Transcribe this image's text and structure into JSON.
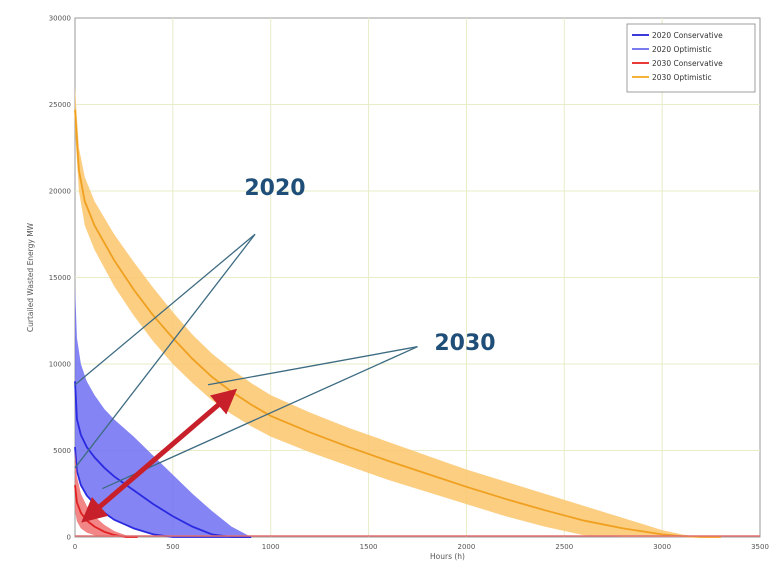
{
  "chart_data": {
    "type": "area",
    "title": "",
    "xlabel": "Hours (h)",
    "ylabel": "Curtailed Wasted Energy MW",
    "xlim": [
      0,
      3500
    ],
    "ylim": [
      0,
      30000
    ],
    "x_ticks": [
      0,
      500,
      1000,
      1500,
      2000,
      2500,
      3000,
      3500
    ],
    "y_ticks": [
      0,
      5000,
      10000,
      15000,
      20000,
      25000,
      30000
    ],
    "x_tick_labels": [
      "0",
      "500",
      "1000",
      "1500",
      "2000",
      "2500",
      "3000",
      "3500"
    ],
    "y_tick_labels": [
      "0",
      "5000",
      "10000",
      "15000",
      "20000",
      "25000",
      "30000"
    ],
    "grid": true,
    "legend_position": "top-right",
    "legend": [
      {
        "label": "2020 Conservative",
        "color": "#3b3bd9"
      },
      {
        "label": "2020 Optimistic",
        "color": "#7b7bf0"
      },
      {
        "label": "2030 Conservative",
        "color": "#e83a3a"
      },
      {
        "label": "2030 Optimistic",
        "color": "#f7b23b"
      }
    ],
    "bands": [
      {
        "group": "2030",
        "fill": "#fbc66b",
        "line": "#f0a020",
        "x": [
          0,
          20,
          50,
          100,
          200,
          300,
          400,
          500,
          600,
          700,
          800,
          900,
          1000,
          1200,
          1400,
          1600,
          1800,
          2000,
          2200,
          2400,
          2600,
          2800,
          3000,
          3100,
          3200,
          3300
        ],
        "upper": [
          26000,
          22500,
          20800,
          19400,
          17500,
          15900,
          14400,
          13000,
          11700,
          10600,
          9700,
          8900,
          8200,
          7200,
          6300,
          5500,
          4700,
          3900,
          3200,
          2500,
          1800,
          1100,
          400,
          150,
          0,
          0
        ],
        "lower": [
          23500,
          20000,
          18000,
          16600,
          14500,
          12800,
          11300,
          10000,
          8900,
          7900,
          7100,
          6400,
          5800,
          4900,
          4100,
          3300,
          2600,
          1900,
          1200,
          600,
          100,
          0,
          0,
          0,
          0,
          0
        ],
        "center": [
          24700,
          21200,
          19400,
          18000,
          16000,
          14300,
          12800,
          11500,
          10300,
          9250,
          8400,
          7650,
          7000,
          6050,
          5200,
          4400,
          3650,
          2900,
          2200,
          1550,
          950,
          500,
          150,
          50,
          0,
          0
        ]
      },
      {
        "group": "2020",
        "fill": "#6e6ef2",
        "line": "#2a2ae0",
        "x": [
          0,
          10,
          30,
          60,
          100,
          150,
          200,
          300,
          400,
          500,
          600,
          700,
          800,
          900
        ],
        "upper": [
          14500,
          11500,
          10000,
          9000,
          8200,
          7400,
          6800,
          5800,
          4700,
          3600,
          2500,
          1500,
          600,
          0
        ],
        "lower": [
          5200,
          3800,
          3000,
          2400,
          1900,
          1400,
          1000,
          500,
          150,
          0,
          0,
          0,
          0,
          0
        ],
        "center": [
          9000,
          6800,
          5900,
          5200,
          4600,
          4000,
          3500,
          2700,
          1900,
          1200,
          600,
          150,
          0,
          0
        ],
        "center2": [
          5200,
          3800,
          3000,
          2400,
          1900,
          1400,
          1000,
          500,
          150,
          0,
          0,
          0,
          0,
          0
        ]
      },
      {
        "group": "2030-red",
        "fill": "#f07070",
        "line": "#e02020",
        "x": [
          0,
          10,
          30,
          60,
          100,
          150,
          200,
          260,
          320
        ],
        "upper": [
          5000,
          3500,
          2500,
          1800,
          1200,
          700,
          350,
          100,
          0
        ],
        "lower": [
          1500,
          900,
          500,
          250,
          100,
          0,
          0,
          0,
          0
        ],
        "center": [
          3000,
          2000,
          1400,
          950,
          600,
          300,
          120,
          0,
          0
        ]
      }
    ],
    "annotations": [
      {
        "text": "2020",
        "color": "#1f4e79"
      },
      {
        "text": "2030",
        "color": "#1f4e79"
      }
    ],
    "callout_lines": [
      {
        "from": [
          920,
          17500
        ],
        "to": [
          0,
          8800
        ]
      },
      {
        "from": [
          920,
          17500
        ],
        "to": [
          0,
          4000
        ]
      },
      {
        "from": [
          1750,
          11000
        ],
        "to": [
          680,
          8800
        ]
      },
      {
        "from": [
          1750,
          11000
        ],
        "to": [
          140,
          2800
        ]
      }
    ],
    "arrow": {
      "from": [
        80,
        1300
      ],
      "to": [
        780,
        8100
      ],
      "color": "#c8202a"
    }
  }
}
